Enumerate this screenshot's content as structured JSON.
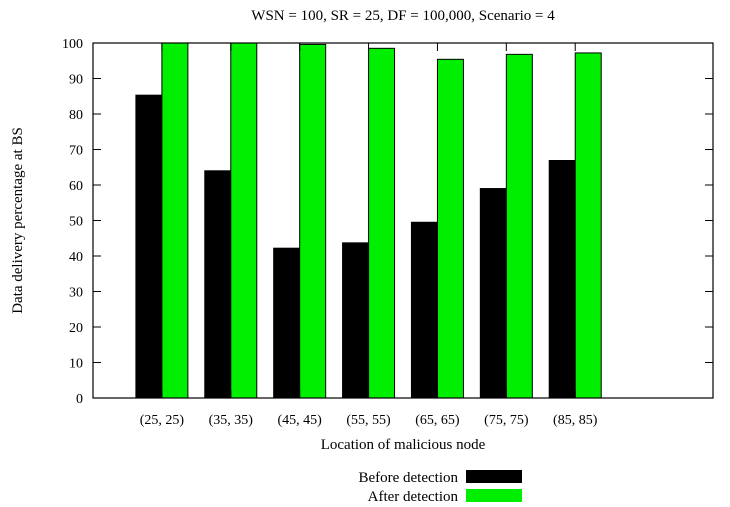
{
  "chart_data": {
    "type": "bar",
    "title": "WSN = 100, SR = 25, DF = 100,000, Scenario = 4",
    "xlabel": "Location of malicious node",
    "ylabel": "Data delivery percentage at BS",
    "categories": [
      "(25, 25)",
      "(35, 35)",
      "(45, 45)",
      "(55, 55)",
      "(65, 65)",
      "(75, 75)",
      "(85, 85)"
    ],
    "series": [
      {
        "name": "Before detection",
        "color": "#000000",
        "values": [
          85.3,
          64.0,
          42.2,
          43.7,
          49.5,
          59.0,
          66.9
        ]
      },
      {
        "name": "After detection",
        "color": "#00ee00",
        "values": [
          100,
          100,
          99.6,
          98.5,
          95.4,
          96.8,
          97.2
        ]
      }
    ],
    "ylim": [
      0,
      100
    ],
    "yticks": [
      0,
      10,
      20,
      30,
      40,
      50,
      60,
      70,
      80,
      90,
      100
    ],
    "xrange": [
      -1,
      8
    ],
    "legend_position": "bottom-center",
    "grid": false
  }
}
